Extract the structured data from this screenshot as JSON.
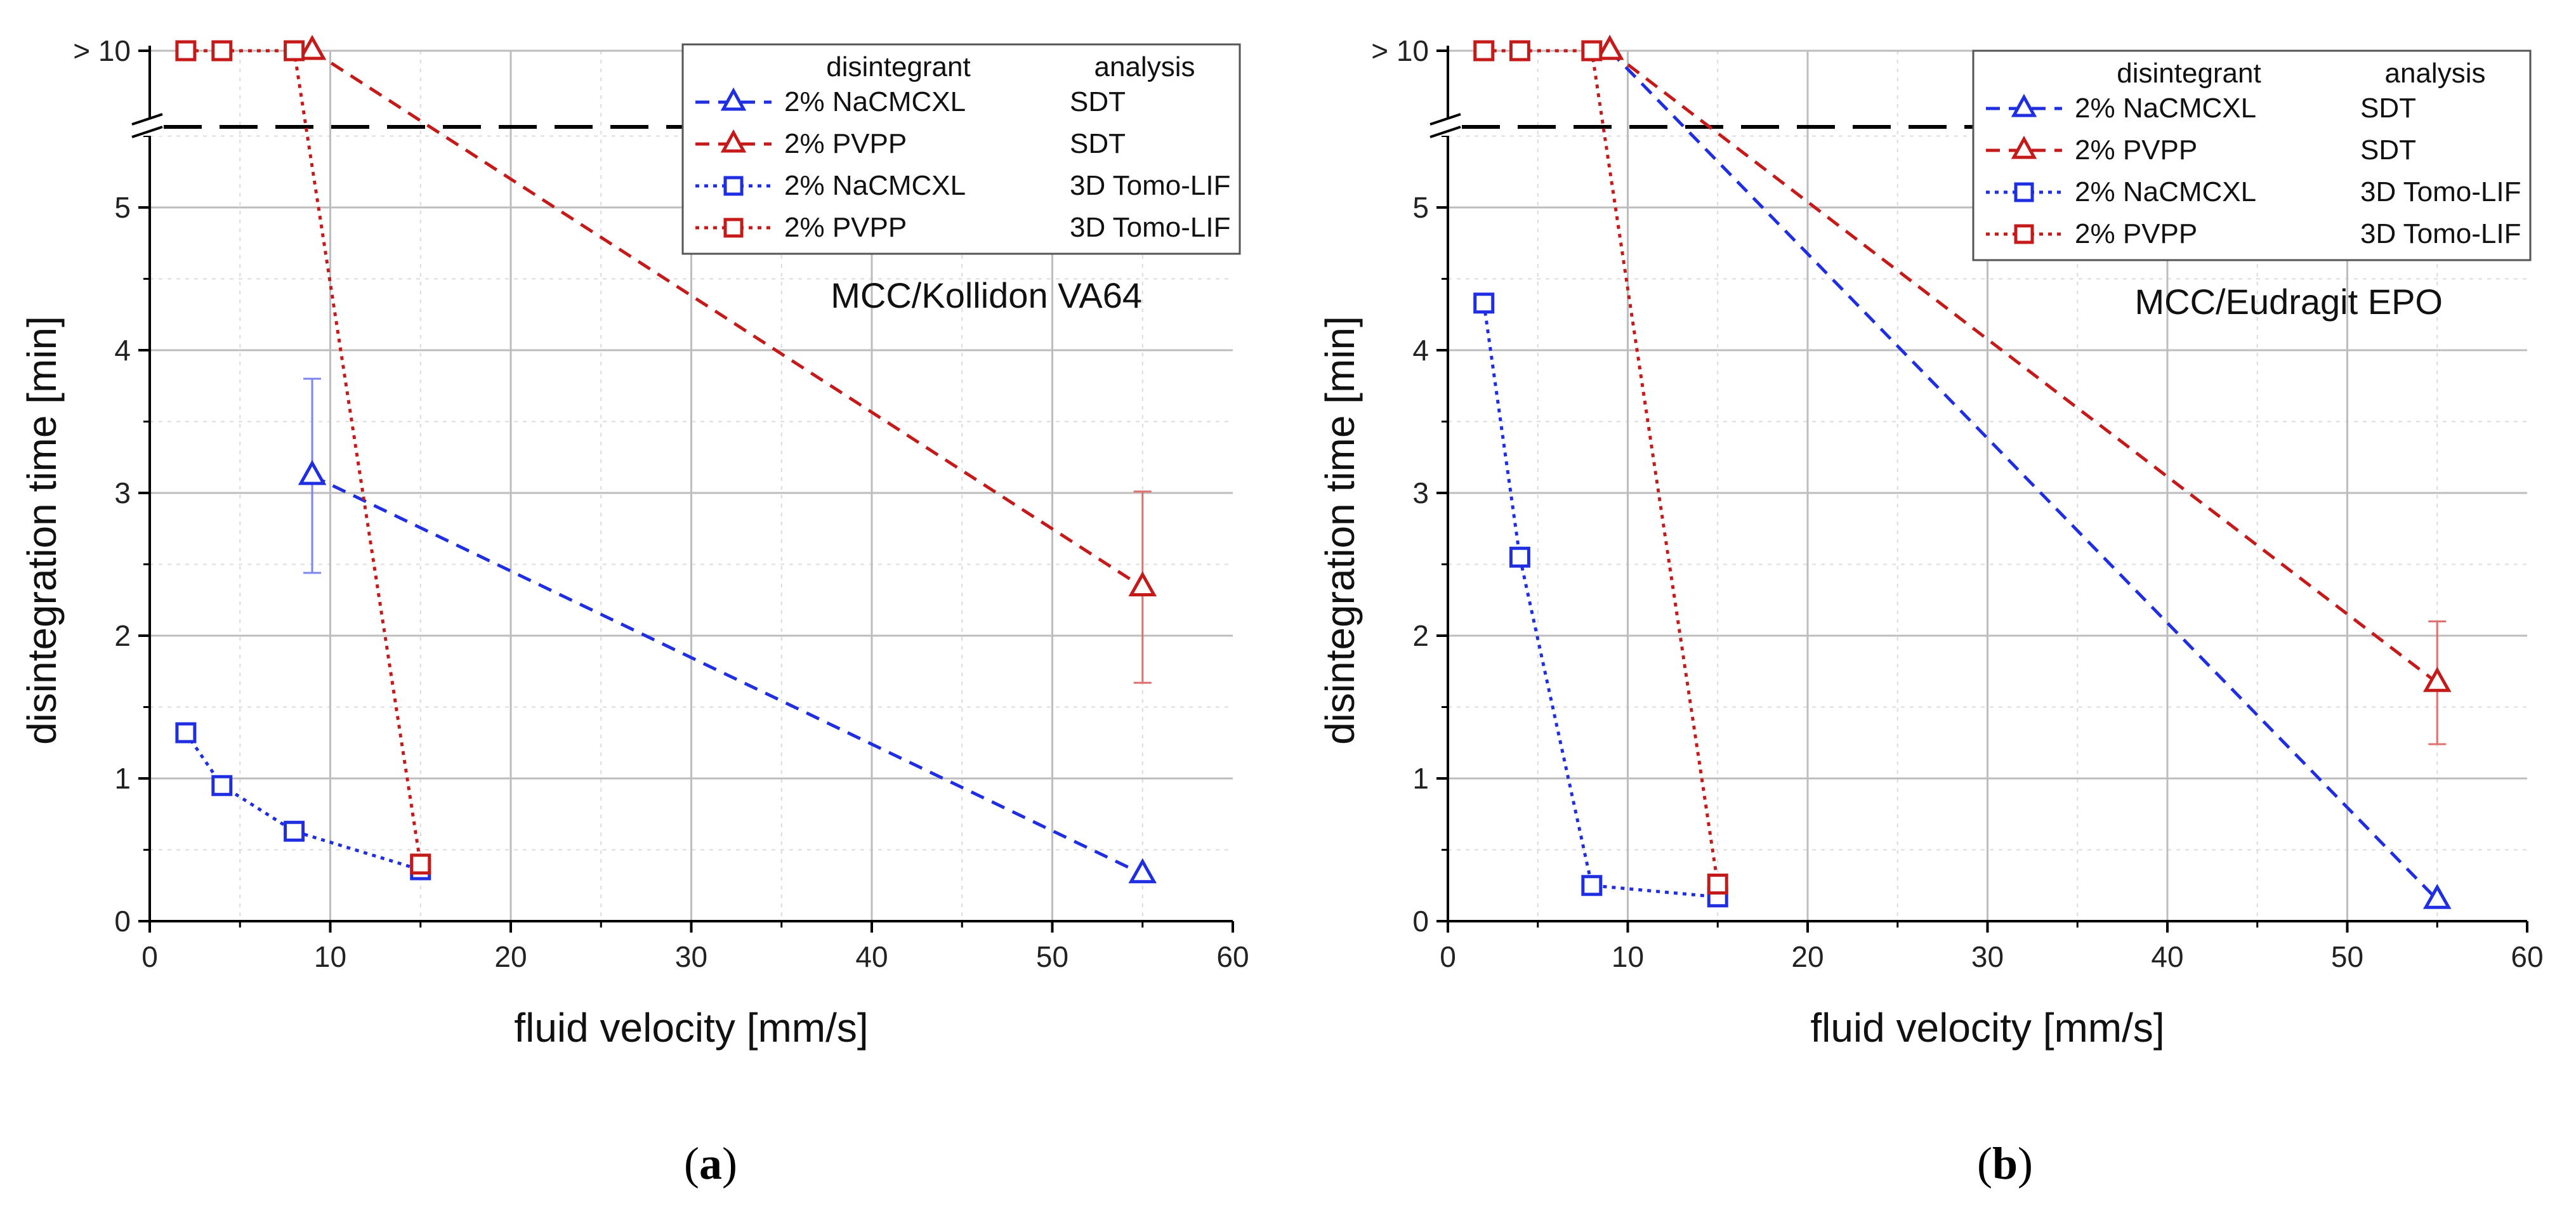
{
  "figure": {
    "caption_a": "a",
    "caption_b": "b"
  },
  "colors": {
    "blue": "#1f2ee0",
    "red": "#c41a1a",
    "grid_major": "#bdbdbd",
    "grid_minor": "#dcdcdc"
  },
  "chart_data": [
    {
      "type": "line",
      "panel": "a",
      "annotation": "MCC/Kollidon VA64",
      "xlabel": "fluid velocity [mm/s]",
      "ylabel": "disintegration time [min]",
      "xlim": [
        0,
        60
      ],
      "ylim": [
        0,
        6.2
      ],
      "x_ticks": [
        "0",
        "10",
        "20",
        "30",
        "40",
        "50",
        "60"
      ],
      "y_ticks": [
        "0",
        "1",
        "2",
        "3",
        "4",
        "5"
      ],
      "break_label": "> 10",
      "legend": {
        "header_1": "disintegrant",
        "header_2": "analysis",
        "position": "top-right"
      },
      "series": [
        {
          "name": "2% NaCMCXL",
          "analysis": "SDT",
          "color": "blue",
          "marker": "triangle",
          "linestyle": "dashed",
          "x": [
            9,
            55
          ],
          "y": [
            3.12,
            0.33
          ],
          "error": [
            0.68,
            0
          ]
        },
        {
          "name": "2% PVPP",
          "analysis": "SDT",
          "color": "red",
          "marker": "triangle",
          "linestyle": "dashed",
          "x": [
            9,
            55
          ],
          "y": [
            ">10",
            2.34
          ],
          "error": [
            0,
            0.67
          ]
        },
        {
          "name": "2% NaCMCXL",
          "analysis": "3D Tomo-LIF",
          "color": "blue",
          "marker": "square",
          "linestyle": "dotted",
          "x": [
            2,
            4,
            8,
            15
          ],
          "y": [
            1.32,
            0.95,
            0.63,
            0.36
          ],
          "error": [
            0,
            0,
            0,
            0
          ]
        },
        {
          "name": "2% PVPP",
          "analysis": "3D Tomo-LIF",
          "color": "red",
          "marker": "square",
          "linestyle": "dotted",
          "x": [
            2,
            4,
            8,
            15
          ],
          "y": [
            ">10",
            ">10",
            ">10",
            0.4
          ],
          "error": [
            0,
            0,
            0,
            0
          ]
        }
      ]
    },
    {
      "type": "line",
      "panel": "b",
      "annotation": "MCC/Eudragit EPO",
      "xlabel": "fluid velocity [mm/s]",
      "ylabel": "disintegration time [min]",
      "xlim": [
        0,
        60
      ],
      "ylim": [
        0,
        6.2
      ],
      "x_ticks": [
        "0",
        "10",
        "20",
        "30",
        "40",
        "50",
        "60"
      ],
      "y_ticks": [
        "0",
        "1",
        "2",
        "3",
        "4",
        "5"
      ],
      "break_label": "> 10",
      "legend": {
        "header_1": "disintegrant",
        "header_2": "analysis",
        "position": "top-right"
      },
      "series": [
        {
          "name": "2% NaCMCXL",
          "analysis": "SDT",
          "color": "blue",
          "marker": "triangle",
          "linestyle": "dashed",
          "x": [
            9,
            55
          ],
          "y": [
            ">10",
            0.15
          ],
          "error": [
            0,
            0
          ]
        },
        {
          "name": "2% PVPP",
          "analysis": "SDT",
          "color": "red",
          "marker": "triangle",
          "linestyle": "dashed",
          "x": [
            9,
            55
          ],
          "y": [
            ">10",
            1.67
          ],
          "error": [
            0,
            0.43
          ]
        },
        {
          "name": "2% NaCMCXL",
          "analysis": "3D Tomo-LIF",
          "color": "blue",
          "marker": "square",
          "linestyle": "dotted",
          "x": [
            2,
            4,
            8,
            15
          ],
          "y": [
            4.33,
            2.55,
            0.25,
            0.17
          ],
          "error": [
            0,
            0,
            0,
            0
          ]
        },
        {
          "name": "2% PVPP",
          "analysis": "3D Tomo-LIF",
          "color": "red",
          "marker": "square",
          "linestyle": "dotted",
          "x": [
            2,
            4,
            8,
            15
          ],
          "y": [
            ">10",
            ">10",
            ">10",
            0.26
          ],
          "error": [
            0,
            0,
            0,
            0
          ]
        }
      ]
    }
  ]
}
